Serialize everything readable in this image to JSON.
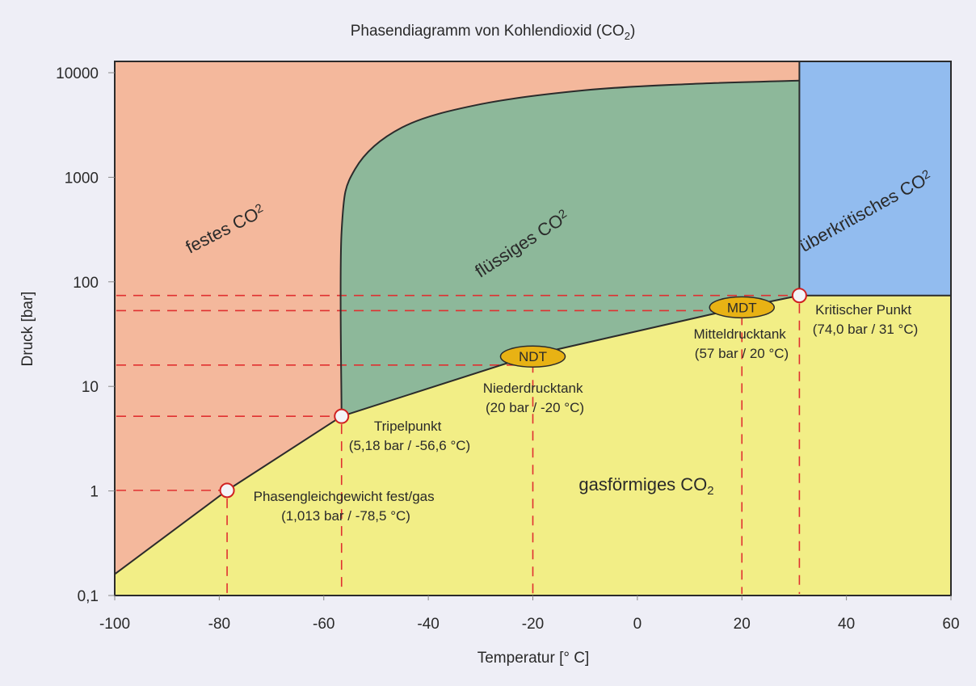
{
  "chart_data": {
    "type": "area",
    "title": "Phasendiagramm von Kohlendioxid (CO",
    "title_sub": "2",
    "title_end": ")",
    "xlabel": "Temperatur [° C]",
    "ylabel": "Druck [bar]",
    "xlim": [
      -100,
      60
    ],
    "ylim": [
      0.1,
      10000
    ],
    "yscale": "log",
    "grid": false,
    "x_ticks": [
      -100,
      -80,
      -60,
      -40,
      -20,
      0,
      20,
      40,
      60
    ],
    "x_tick_labels": [
      "-100",
      "-80",
      "-60",
      "-40",
      "-20",
      "0",
      "20",
      "40",
      "60"
    ],
    "y_ticks": [
      0.1,
      1,
      10,
      100,
      1000,
      10000
    ],
    "y_tick_labels": [
      "0,1",
      "1",
      "10",
      "100",
      "1000",
      "10000"
    ],
    "colors": {
      "solid": "#f4b89c",
      "liquid": "#8db89a",
      "gas": "#f2ee86",
      "supercritical": "#92bcef",
      "boundary": "#2b2b2b",
      "guide": "#e03030",
      "badge": "#e8b214",
      "marker_fill": "#f4f4f8",
      "marker_stroke": "#d02020"
    },
    "regions": [
      {
        "name": "solid",
        "label": "festes CO",
        "sub": "2"
      },
      {
        "name": "liquid",
        "label": "flüssiges CO",
        "sub": "2"
      },
      {
        "name": "gas",
        "label": "gasförmiges CO",
        "sub": "2"
      },
      {
        "name": "supercritical",
        "label": "überkritisches CO",
        "sub": "2"
      }
    ],
    "curves": {
      "sublimation": [
        [
          -100,
          0.16
        ],
        [
          -78.5,
          1.013
        ],
        [
          -56.6,
          5.18
        ]
      ],
      "vaporization": [
        [
          -56.6,
          5.18
        ],
        [
          -20,
          20
        ],
        [
          20,
          57
        ],
        [
          31,
          74
        ]
      ],
      "melting": [
        [
          -56.6,
          5.18
        ],
        [
          -56.6,
          300
        ],
        [
          -54,
          1200
        ],
        [
          -45,
          3000
        ],
        [
          -30,
          5000
        ],
        [
          -10,
          6800
        ],
        [
          10,
          7800
        ],
        [
          31,
          8400
        ]
      ],
      "supercritical_box": {
        "t_min": 31,
        "t_max": 60,
        "p_min": 74,
        "p_max": 10000
      }
    },
    "points": [
      {
        "id": "sublimation-point",
        "label": "Phasengleichgewicht fest/gas",
        "value_label": "(1,013 bar / -78,5 °C)",
        "t": -78.5,
        "p": 1.013
      },
      {
        "id": "triple-point",
        "label": "Tripelpunkt",
        "value_label": "(5,18 bar / -56,6 °C)",
        "t": -56.6,
        "p": 5.18
      },
      {
        "id": "critical-point",
        "label": "Kritischer Punkt",
        "value_label": "(74,0 bar / 31 °C)",
        "t": 31,
        "p": 74
      }
    ],
    "tanks": [
      {
        "id": "ndt",
        "badge": "NDT",
        "label": "Niederdrucktank",
        "value_label": "(20 bar / -20 °C)",
        "t": -20,
        "p": 20,
        "guide_p": 16
      },
      {
        "id": "mdt",
        "badge": "MDT",
        "label": "Mitteldrucktank",
        "value_label": "(57 bar / 20 °C)",
        "t": 20,
        "p": 57,
        "guide_p": 53
      }
    ],
    "guides": {
      "horizontal_p": [
        74,
        53,
        16,
        5.18,
        1.013
      ],
      "vertical_t": [
        -78.5,
        -56.6,
        -20,
        20,
        31
      ]
    }
  }
}
